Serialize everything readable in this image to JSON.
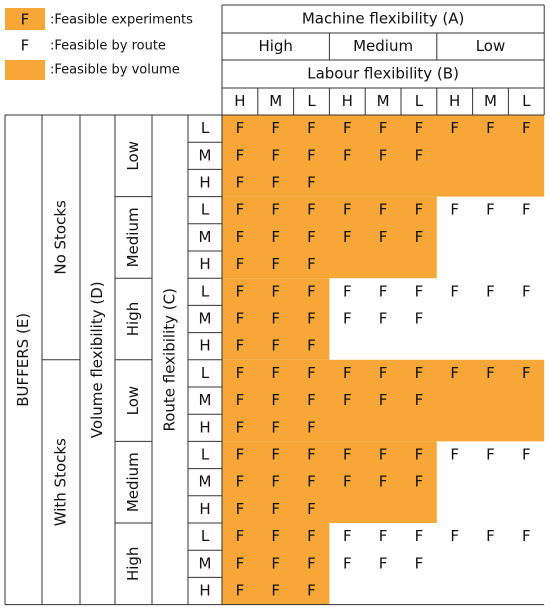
{
  "legend": [
    {
      "symbol": "F",
      "label": ":Feasible experiments"
    },
    {
      "symbol": "F",
      "label": ":Feasible by route"
    },
    {
      "label": ":Feasible by volume"
    }
  ],
  "shade_color": "#f7a738",
  "header": {
    "machine_title": "Machine flexibility (A)",
    "machine_levels": [
      "High",
      "Medium",
      "Low"
    ],
    "labour_title": "Labour flexibility (B)",
    "labour_levels": [
      "H",
      "M",
      "L",
      "H",
      "M",
      "L",
      "H",
      "M",
      "L"
    ]
  },
  "row_header": {
    "buffers_title": "BUFFERS (E)",
    "volume_title": "Volume flexibility (D)",
    "route_title": "Route flexibility (C)"
  },
  "stocks": [
    {
      "label": "No Stocks",
      "volume": [
        {
          "label": "Low",
          "shaded_columns": 9,
          "routes": [
            {
              "label": "L",
              "cells": [
                "F",
                "F",
                "F",
                "F",
                "F",
                "F",
                "F",
                "F",
                "F"
              ]
            },
            {
              "label": "M",
              "cells": [
                "F",
                "F",
                "F",
                "F",
                "F",
                "F"
              ]
            },
            {
              "label": "H",
              "cells": [
                "F",
                "F",
                "F"
              ]
            }
          ]
        },
        {
          "label": "Medium",
          "shaded_columns": 6,
          "routes": [
            {
              "label": "L",
              "cells": [
                "F",
                "F",
                "F",
                "F",
                "F",
                "F",
                "F",
                "F",
                "F"
              ]
            },
            {
              "label": "M",
              "cells": [
                "F",
                "F",
                "F",
                "F",
                "F",
                "F"
              ]
            },
            {
              "label": "H",
              "cells": [
                "F",
                "F",
                "F"
              ]
            }
          ]
        },
        {
          "label": "High",
          "shaded_columns": 3,
          "routes": [
            {
              "label": "L",
              "cells": [
                "F",
                "F",
                "F",
                "F",
                "F",
                "F",
                "F",
                "F",
                "F"
              ]
            },
            {
              "label": "M",
              "cells": [
                "F",
                "F",
                "F",
                "F",
                "F",
                "F"
              ]
            },
            {
              "label": "H",
              "cells": [
                "F",
                "F",
                "F"
              ]
            }
          ]
        }
      ]
    },
    {
      "label": "With Stocks",
      "volume": [
        {
          "label": "Low",
          "shaded_columns": 9,
          "routes": [
            {
              "label": "L",
              "cells": [
                "F",
                "F",
                "F",
                "F",
                "F",
                "F",
                "F",
                "F",
                "F"
              ]
            },
            {
              "label": "M",
              "cells": [
                "F",
                "F",
                "F",
                "F",
                "F",
                "F"
              ]
            },
            {
              "label": "H",
              "cells": [
                "F",
                "F",
                "F"
              ]
            }
          ]
        },
        {
          "label": "Medium",
          "shaded_columns": 6,
          "routes": [
            {
              "label": "L",
              "cells": [
                "F",
                "F",
                "F",
                "F",
                "F",
                "F",
                "F",
                "F",
                "F"
              ]
            },
            {
              "label": "M",
              "cells": [
                "F",
                "F",
                "F",
                "F",
                "F",
                "F"
              ]
            },
            {
              "label": "H",
              "cells": [
                "F",
                "F",
                "F"
              ]
            }
          ]
        },
        {
          "label": "High",
          "shaded_columns": 3,
          "routes": [
            {
              "label": "L",
              "cells": [
                "F",
                "F",
                "F",
                "F",
                "F",
                "F",
                "F",
                "F",
                "F"
              ]
            },
            {
              "label": "M",
              "cells": [
                "F",
                "F",
                "F",
                "F",
                "F",
                "F"
              ]
            },
            {
              "label": "H",
              "cells": [
                "F",
                "F",
                "F"
              ]
            }
          ]
        }
      ]
    }
  ]
}
